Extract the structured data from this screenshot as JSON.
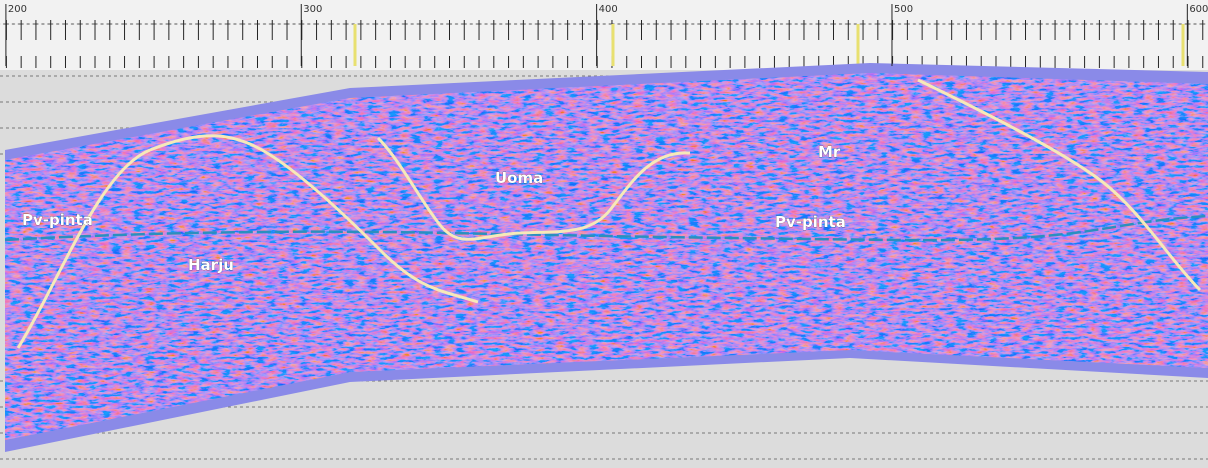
{
  "chart_data": {
    "type": "radargram",
    "xlim": [
      198,
      607
    ],
    "xticks": [
      200,
      300,
      400,
      500,
      600
    ],
    "annotations": [
      "Pv-pinta",
      "Harju",
      "Uoma",
      "Mr",
      "Pv-pinta"
    ]
  }
}
